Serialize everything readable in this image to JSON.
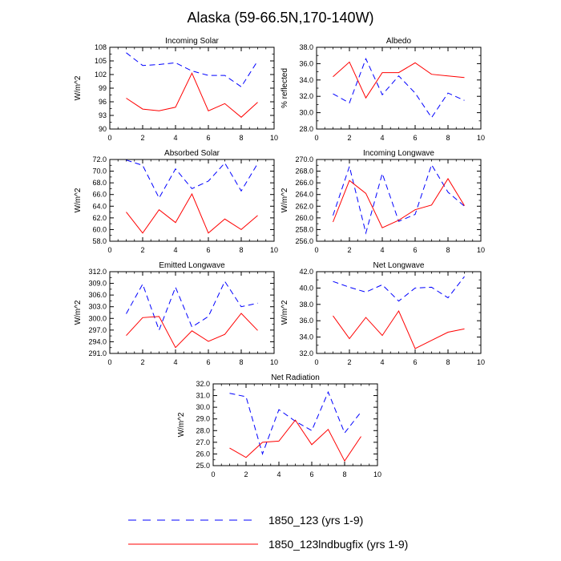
{
  "figure": {
    "title": "Alaska (59-66.5N,170-140W)",
    "legend": [
      {
        "label": "1850_123 (yrs 1-9)",
        "color": "#0000ff",
        "dash": "dashed"
      },
      {
        "label": "1850_123lndbugfix (yrs 1-9)",
        "color": "#ff0000",
        "dash": "solid"
      }
    ]
  },
  "chart_data": [
    {
      "type": "line",
      "title": "Incoming Solar",
      "ylabel": "W/m^2",
      "xlim": [
        0,
        10
      ],
      "xticks": [
        0,
        2,
        4,
        6,
        8,
        10
      ],
      "ylim": [
        90,
        108
      ],
      "yticks": [
        "90",
        "93",
        "96",
        "99",
        "102",
        "105",
        "108"
      ],
      "x": [
        1,
        2,
        3,
        4,
        5,
        6,
        7,
        8,
        9
      ],
      "series": [
        {
          "name": "1850_123 (yrs 1-9)",
          "color": "#0000ff",
          "dash": "dashed",
          "values": [
            106.8,
            104.0,
            104.2,
            104.6,
            102.8,
            101.8,
            101.8,
            99.3,
            105.0
          ]
        },
        {
          "name": "1850_123lndbugfix (yrs 1-9)",
          "color": "#ff0000",
          "dash": "solid",
          "values": [
            96.8,
            94.4,
            94.0,
            94.8,
            102.3,
            94.0,
            95.6,
            92.6,
            95.9
          ]
        }
      ]
    },
    {
      "type": "line",
      "title": "Albedo",
      "ylabel": "% reflected",
      "xlim": [
        0,
        10
      ],
      "xticks": [
        0,
        2,
        4,
        6,
        8,
        10
      ],
      "ylim": [
        28,
        38
      ],
      "yticks": [
        "28.0",
        "30.0",
        "32.0",
        "34.0",
        "36.0",
        "38.0"
      ],
      "x": [
        1,
        2,
        3,
        4,
        5,
        6,
        7,
        8,
        9
      ],
      "series": [
        {
          "name": "1850_123 (yrs 1-9)",
          "color": "#0000ff",
          "dash": "dashed",
          "values": [
            32.3,
            31.2,
            36.6,
            32.2,
            34.5,
            32.4,
            29.4,
            32.4,
            31.5
          ]
        },
        {
          "name": "1850_123lndbugfix (yrs 1-9)",
          "color": "#ff0000",
          "dash": "solid",
          "values": [
            34.4,
            36.2,
            31.8,
            34.9,
            34.9,
            36.1,
            34.7,
            34.5,
            34.3
          ]
        }
      ]
    },
    {
      "type": "line",
      "title": "Absorbed Solar",
      "ylabel": "W/m^2",
      "xlim": [
        0,
        10
      ],
      "xticks": [
        0,
        2,
        4,
        6,
        8,
        10
      ],
      "ylim": [
        58,
        72
      ],
      "yticks": [
        "58.0",
        "60.0",
        "62.0",
        "64.0",
        "66.0",
        "68.0",
        "70.0",
        "72.0"
      ],
      "x": [
        1,
        2,
        3,
        4,
        5,
        6,
        7,
        8,
        9
      ],
      "series": [
        {
          "name": "1850_123 (yrs 1-9)",
          "color": "#0000ff",
          "dash": "dashed",
          "values": [
            71.9,
            71.0,
            65.4,
            70.4,
            67.0,
            68.3,
            71.4,
            66.6,
            71.3
          ]
        },
        {
          "name": "1850_123lndbugfix (yrs 1-9)",
          "color": "#ff0000",
          "dash": "solid",
          "values": [
            63.0,
            59.4,
            63.4,
            61.2,
            66.1,
            59.4,
            61.8,
            60.0,
            62.4
          ]
        }
      ]
    },
    {
      "type": "line",
      "title": "Incoming Longwave",
      "ylabel": "W/m^2",
      "xlim": [
        0,
        10
      ],
      "xticks": [
        0,
        2,
        4,
        6,
        8,
        10
      ],
      "ylim": [
        256,
        270
      ],
      "yticks": [
        "256.0",
        "258.0",
        "260.0",
        "262.0",
        "264.0",
        "266.0",
        "268.0",
        "270.0"
      ],
      "x": [
        1,
        2,
        3,
        4,
        5,
        6,
        7,
        8,
        9
      ],
      "series": [
        {
          "name": "1850_123 (yrs 1-9)",
          "color": "#0000ff",
          "dash": "dashed",
          "values": [
            260.4,
            268.8,
            257.4,
            267.6,
            259.4,
            260.6,
            269.1,
            264.4,
            262.0
          ]
        },
        {
          "name": "1850_123lndbugfix (yrs 1-9)",
          "color": "#ff0000",
          "dash": "solid",
          "values": [
            259.3,
            266.4,
            264.2,
            258.3,
            259.6,
            261.4,
            262.2,
            266.7,
            262.1
          ]
        }
      ]
    },
    {
      "type": "line",
      "title": "Emitted Longwave",
      "ylabel": "W/m^2",
      "xlim": [
        0,
        10
      ],
      "xticks": [
        0,
        2,
        4,
        6,
        8,
        10
      ],
      "ylim": [
        291,
        312
      ],
      "yticks": [
        "291.0",
        "294.0",
        "297.0",
        "300.0",
        "303.0",
        "306.0",
        "309.0",
        "312.0"
      ],
      "x": [
        1,
        2,
        3,
        4,
        5,
        6,
        7,
        8,
        9
      ],
      "series": [
        {
          "name": "1850_123 (yrs 1-9)",
          "color": "#0000ff",
          "dash": "dashed",
          "values": [
            301.2,
            308.8,
            297.0,
            308.0,
            297.8,
            300.5,
            309.5,
            303.0,
            303.9
          ]
        },
        {
          "name": "1850_123lndbugfix (yrs 1-9)",
          "color": "#ff0000",
          "dash": "solid",
          "values": [
            295.6,
            300.2,
            300.5,
            292.5,
            296.8,
            294.1,
            295.9,
            301.3,
            296.9
          ]
        }
      ]
    },
    {
      "type": "line",
      "title": "Net Longwave",
      "ylabel": "W/m^2",
      "xlim": [
        0,
        10
      ],
      "xticks": [
        0,
        2,
        4,
        6,
        8,
        10
      ],
      "ylim": [
        32,
        42
      ],
      "yticks": [
        "32.0",
        "34.0",
        "36.0",
        "38.0",
        "40.0",
        "42.0"
      ],
      "x": [
        1,
        2,
        3,
        4,
        5,
        6,
        7,
        8,
        9
      ],
      "series": [
        {
          "name": "1850_123 (yrs 1-9)",
          "color": "#0000ff",
          "dash": "dashed",
          "values": [
            40.8,
            40.1,
            39.5,
            40.4,
            38.4,
            40.0,
            40.1,
            38.8,
            41.4
          ]
        },
        {
          "name": "1850_123lndbugfix (yrs 1-9)",
          "color": "#ff0000",
          "dash": "solid",
          "values": [
            36.6,
            33.8,
            36.4,
            34.2,
            37.2,
            32.6,
            33.6,
            34.6,
            35.0
          ]
        }
      ]
    },
    {
      "type": "line",
      "title": "Net Radiation",
      "ylabel": "W/m^2",
      "xlim": [
        0,
        10
      ],
      "xticks": [
        0,
        2,
        4,
        6,
        8,
        10
      ],
      "ylim": [
        25,
        32
      ],
      "yticks": [
        "25.0",
        "26.0",
        "27.0",
        "28.0",
        "29.0",
        "30.0",
        "31.0",
        "32.0"
      ],
      "x": [
        1,
        2,
        3,
        4,
        5,
        6,
        7,
        8,
        9
      ],
      "series": [
        {
          "name": "1850_123 (yrs 1-9)",
          "color": "#0000ff",
          "dash": "dashed",
          "values": [
            31.2,
            30.9,
            26.0,
            29.8,
            28.8,
            28.0,
            31.3,
            27.8,
            29.6
          ]
        },
        {
          "name": "1850_123lndbugfix (yrs 1-9)",
          "color": "#ff0000",
          "dash": "solid",
          "values": [
            26.5,
            25.7,
            27.0,
            27.1,
            28.9,
            26.8,
            28.1,
            25.4,
            27.5
          ]
        }
      ]
    }
  ]
}
